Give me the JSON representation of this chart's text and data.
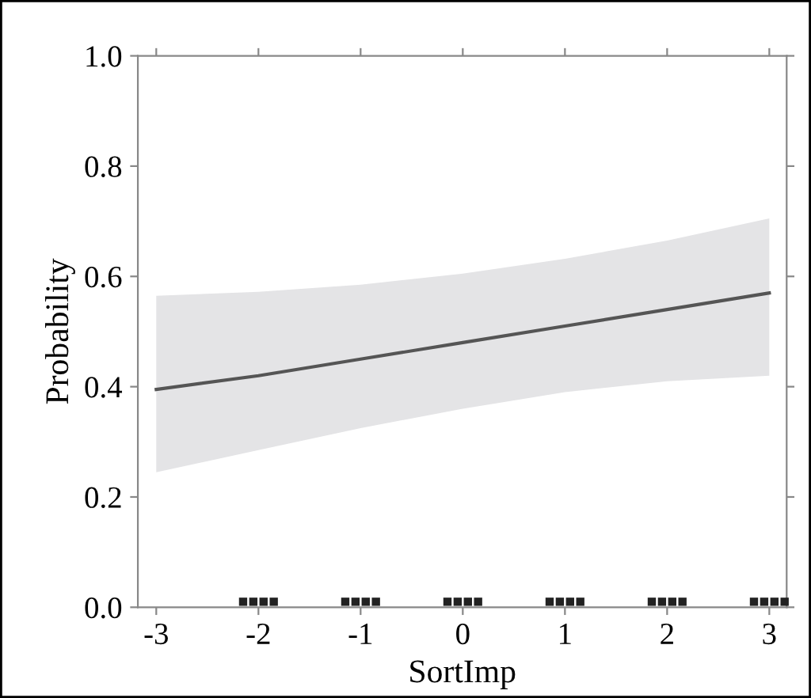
{
  "chart_data": {
    "type": "line",
    "xlabel": "SortImp",
    "ylabel": "Probability",
    "xlim": [
      -3.18,
      3.17
    ],
    "ylim": [
      0,
      1
    ],
    "xticks": [
      {
        "value": -3,
        "label": "-3"
      },
      {
        "value": -2,
        "label": "-2"
      },
      {
        "value": -1,
        "label": "-1"
      },
      0,
      1,
      2,
      3
    ],
    "yticks": [
      {
        "value": 0,
        "label": "0.0"
      },
      {
        "value": 0.2,
        "label": "0.2"
      },
      {
        "value": 0.4,
        "label": "0.4"
      },
      {
        "value": 0.6,
        "label": "0.6"
      },
      {
        "value": 0.8,
        "label": "0.8"
      },
      {
        "value": 1,
        "label": "1.0"
      }
    ],
    "grid": false,
    "legend": false,
    "series": [
      {
        "color": "#555555",
        "x": [
          -3,
          -2,
          -1,
          0,
          1,
          2,
          3
        ],
        "values": [
          0.395,
          0.42,
          0.45,
          0.48,
          0.51,
          0.54,
          0.57
        ],
        "lower": [
          0.245,
          0.285,
          0.325,
          0.36,
          0.39,
          0.41,
          0.42
        ],
        "upper": [
          0.565,
          0.572,
          0.585,
          0.605,
          0.632,
          0.665,
          0.705
        ]
      },
      {
        "type": "scatter",
        "color": "#222222",
        "marker": "square",
        "x": [
          -2.15,
          -2.05,
          -1.95,
          -1.85,
          -1.15,
          -1.05,
          -0.95,
          -0.85,
          -0.15,
          -0.05,
          0.05,
          0.15,
          0.85,
          0.95,
          1.05,
          1.15,
          1.85,
          1.95,
          2.05,
          2.15,
          2.85,
          2.95,
          3.05,
          3.15
        ],
        "values": [
          0.01,
          0.01,
          0.01,
          0.01,
          0.01,
          0.01,
          0.01,
          0.01,
          0.01,
          0.01,
          0.01,
          0.01,
          0.01,
          0.01,
          0.01,
          0.01,
          0.01,
          0.01,
          0.01,
          0.01,
          0.01,
          0.01,
          0.01,
          0.01
        ]
      }
    ]
  }
}
